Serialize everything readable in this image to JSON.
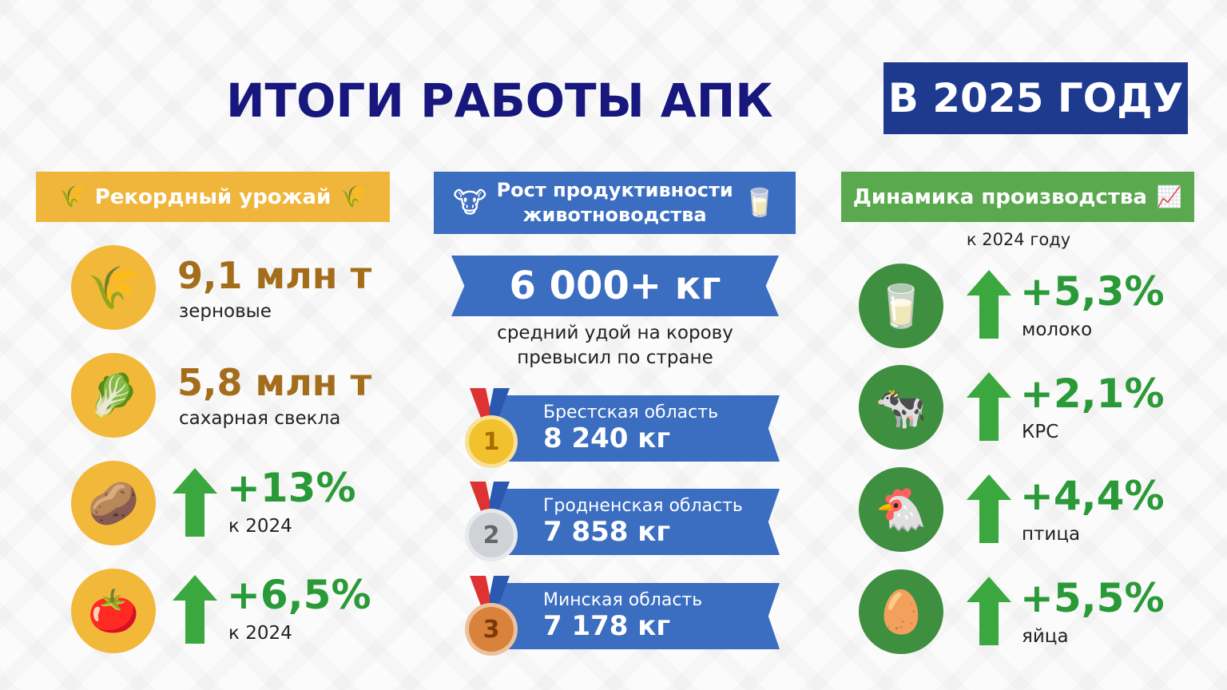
{
  "header": {
    "title": "ИТОГИ РАБОТЫ АПК",
    "year_badge": "В 2025 ГОДУ"
  },
  "colors": {
    "title": "#17177e",
    "year_bg": "#1e3a8f",
    "harvest": "#f0b63c",
    "livestock": "#3b6dc0",
    "dynamics": "#5aa94e",
    "growth": "#2a9a38"
  },
  "harvest": {
    "heading": "Рекордный урожай",
    "items": [
      {
        "icon": "wheat-icon",
        "value": "9,1 млн т",
        "label": "зерновые"
      },
      {
        "icon": "sugar-beet-icon",
        "value": "5,8 млн т",
        "label": "сахарная свекла"
      },
      {
        "icon": "potato-icon",
        "value": "+13%",
        "label": "к 2024"
      },
      {
        "icon": "vegetables-icon",
        "value": "+6,5%",
        "label": "к 2024"
      }
    ]
  },
  "livestock": {
    "heading_line1": "Рост продуктивности",
    "heading_line2": "животноводства",
    "headline_value": "6 000+ кг",
    "headline_text_line1": "средний удой на корову",
    "headline_text_line2": "превысил по стране",
    "ranking": [
      {
        "place": "1",
        "region": "Брестская область",
        "value": "8 240 кг"
      },
      {
        "place": "2",
        "region": "Гродненская область",
        "value": "7 858 кг"
      },
      {
        "place": "3",
        "region": "Минская область",
        "value": "7 178 кг"
      }
    ]
  },
  "dynamics": {
    "heading": "Динамика производства",
    "subtitle": "к 2024 году",
    "items": [
      {
        "icon": "milk-can-icon",
        "value": "+5,3%",
        "label": "молоко"
      },
      {
        "icon": "cow-icon",
        "value": "+2,1%",
        "label": "КРС"
      },
      {
        "icon": "chicken-icon",
        "value": "+4,4%",
        "label": "птица"
      },
      {
        "icon": "eggs-icon",
        "value": "+5,5%",
        "label": "яйца"
      }
    ]
  }
}
